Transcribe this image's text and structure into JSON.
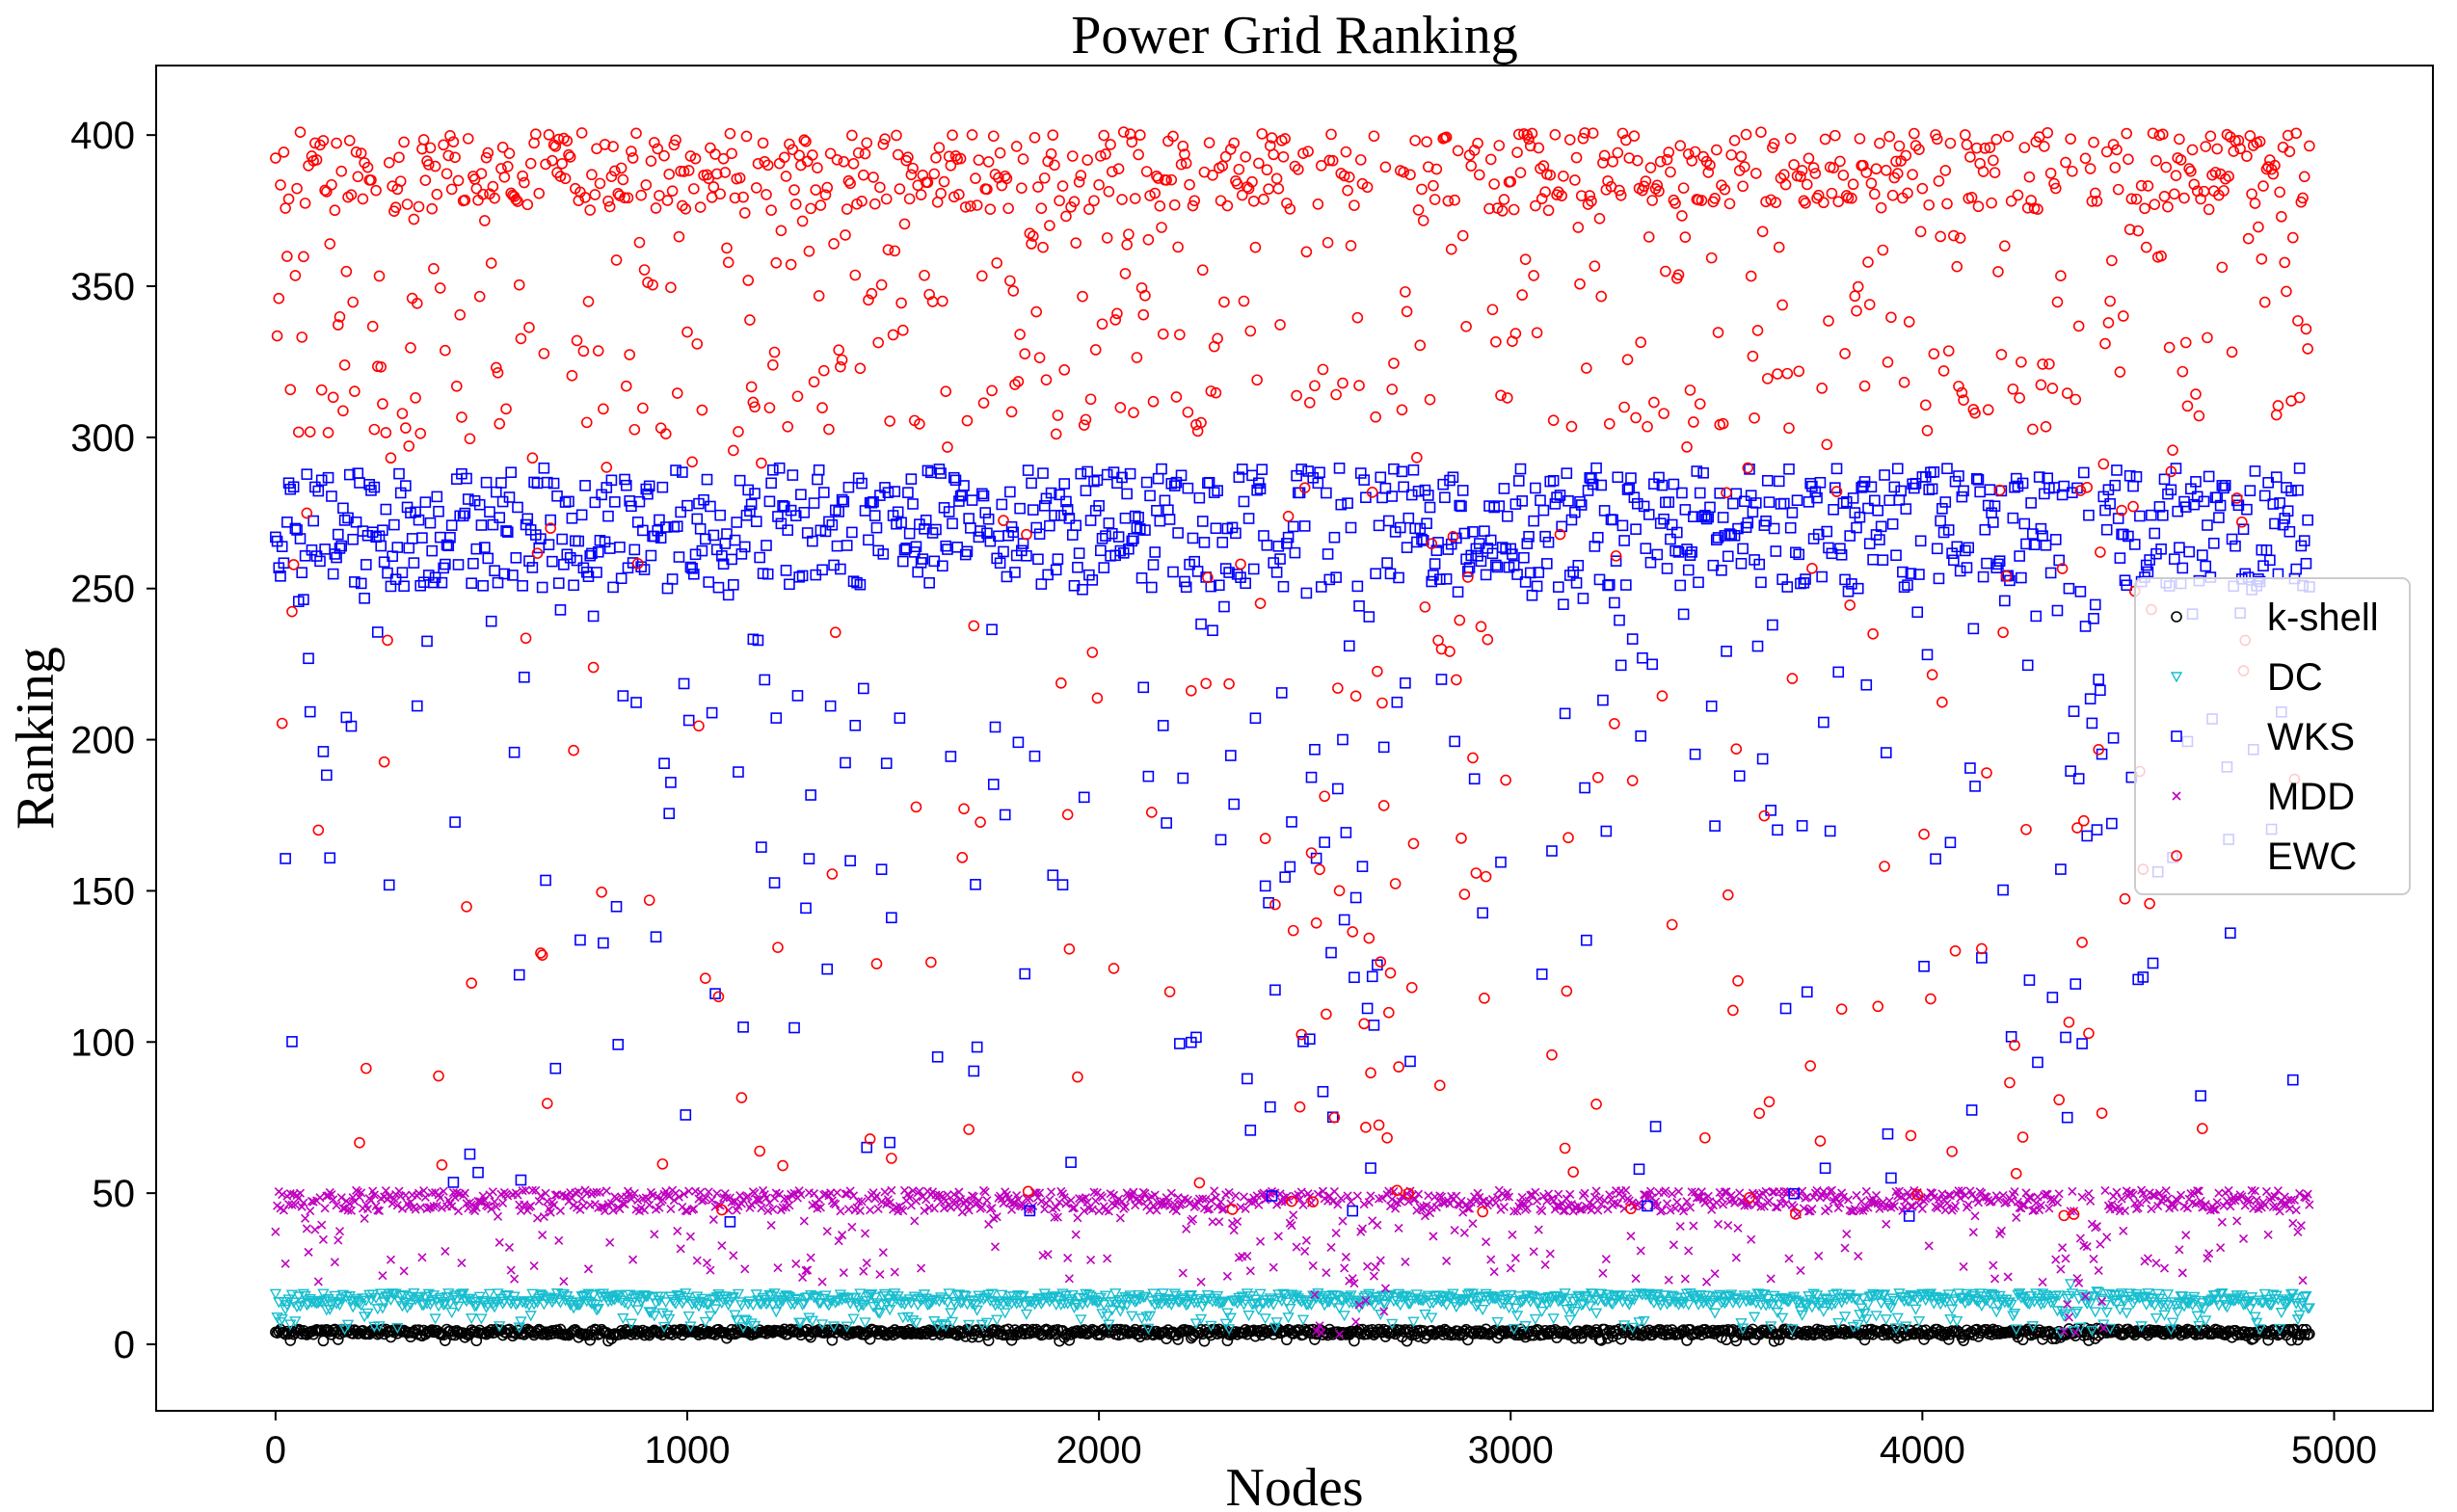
{
  "chart_data": {
    "type": "scatter",
    "title": "Power Grid Ranking",
    "xlabel": "Nodes",
    "ylabel": "Ranking",
    "xlim": [
      -290,
      5240
    ],
    "ylim": [
      -22,
      423
    ],
    "xticks": [
      0,
      1000,
      2000,
      3000,
      4000,
      5000
    ],
    "yticks": [
      0,
      50,
      100,
      150,
      200,
      250,
      300,
      350,
      400
    ],
    "grid": false,
    "legend_position": "right",
    "n_nodes": 4941,
    "series": [
      {
        "name": "k-shell",
        "marker": "circle",
        "color": "#000000",
        "main_band": [
          3,
          5
        ],
        "sparse_range": [
          1,
          3
        ],
        "dip_regions": [
          [
            4330,
            4440
          ]
        ]
      },
      {
        "name": "DC",
        "marker": "triangle-down",
        "color": "#17becf",
        "main_band": [
          13,
          17
        ],
        "sparse_range": [
          5,
          13
        ],
        "dip_regions": [
          [
            4330,
            4440
          ]
        ]
      },
      {
        "name": "WKS",
        "marker": "square",
        "color": "#0000ff",
        "main_band": [
          250,
          290
        ],
        "sparse_range": [
          40,
          250
        ],
        "dip_regions": [
          [
            2400,
            2700
          ],
          [
            4330,
            4440
          ]
        ]
      },
      {
        "name": "MDD",
        "marker": "x",
        "color": "#bf00bf",
        "main_band": [
          44,
          51
        ],
        "sparse_range": [
          20,
          44
        ],
        "dip_regions": [
          [
            2500,
            2700
          ],
          [
            4330,
            4440
          ]
        ]
      },
      {
        "name": "EWC",
        "marker": "circle",
        "color": "#ff0000",
        "main_band": [
          300,
          401
        ],
        "sparse_range": [
          40,
          300
        ],
        "dip_regions": [
          [
            2450,
            2950
          ],
          [
            4330,
            4440
          ]
        ]
      }
    ]
  }
}
